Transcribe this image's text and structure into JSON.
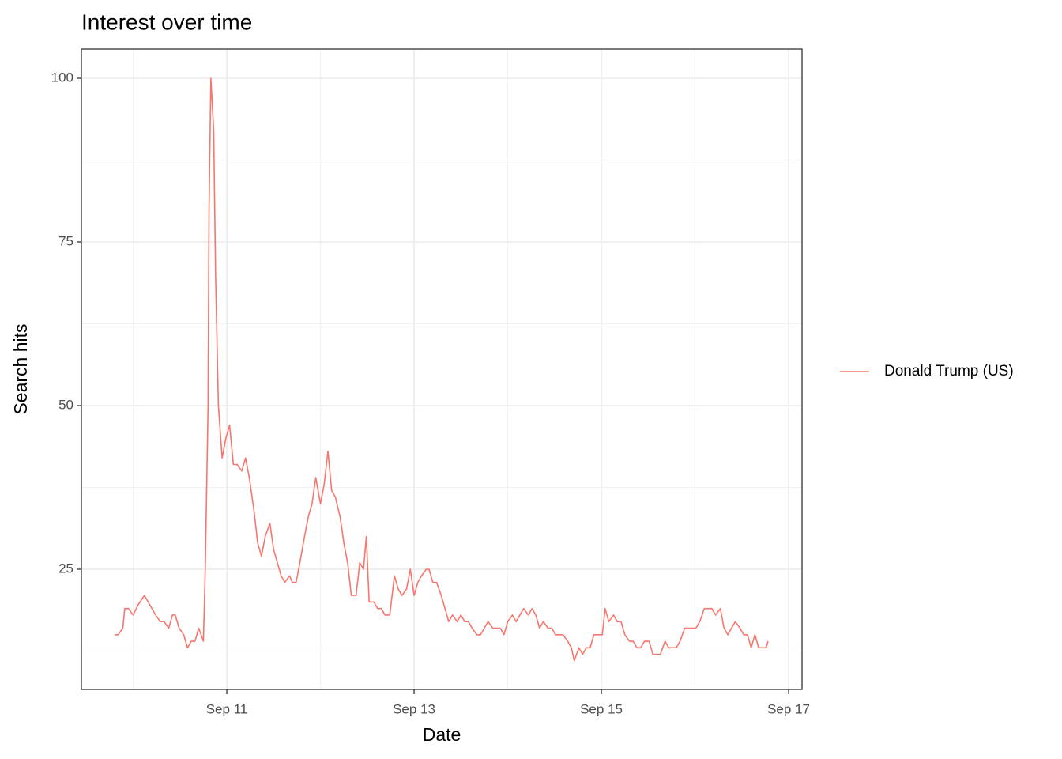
{
  "chart_data": {
    "type": "line",
    "title": "Interest over time",
    "x_label": "Date",
    "y_label": "Search hits",
    "x": [
      9.8,
      9.84,
      9.89,
      9.91,
      9.95,
      10.0,
      10.05,
      10.12,
      10.18,
      10.24,
      10.29,
      10.33,
      10.38,
      10.42,
      10.45,
      10.49,
      10.54,
      10.58,
      10.62,
      10.66,
      10.7,
      10.75,
      10.77,
      10.8,
      10.81,
      10.83,
      10.86,
      10.88,
      10.91,
      10.95,
      10.99,
      11.03,
      11.07,
      11.11,
      11.16,
      11.2,
      11.24,
      11.29,
      11.33,
      11.37,
      11.41,
      11.46,
      11.5,
      11.54,
      11.58,
      11.62,
      11.67,
      11.7,
      11.74,
      11.78,
      11.83,
      11.87,
      11.91,
      11.95,
      12.0,
      12.04,
      12.08,
      12.12,
      12.16,
      12.21,
      12.25,
      12.29,
      12.33,
      12.38,
      12.42,
      12.46,
      12.49,
      12.52,
      12.57,
      12.61,
      12.65,
      12.69,
      12.74,
      12.79,
      12.83,
      12.87,
      12.92,
      12.96,
      13.0,
      13.04,
      13.08,
      13.13,
      13.16,
      13.2,
      13.24,
      13.29,
      13.33,
      13.37,
      13.41,
      13.46,
      13.5,
      13.54,
      13.58,
      13.62,
      13.67,
      13.71,
      13.75,
      13.79,
      13.84,
      13.88,
      13.92,
      13.96,
      14.0,
      14.05,
      14.09,
      14.13,
      14.17,
      14.22,
      14.26,
      14.3,
      14.34,
      14.38,
      14.43,
      14.47,
      14.51,
      14.55,
      14.59,
      14.64,
      14.68,
      14.71,
      14.76,
      14.8,
      14.84,
      14.88,
      14.92,
      14.97,
      15.01,
      15.04,
      15.08,
      15.13,
      15.17,
      15.21,
      15.25,
      15.3,
      15.34,
      15.38,
      15.42,
      15.46,
      15.51,
      15.55,
      15.59,
      15.63,
      15.68,
      15.72,
      15.76,
      15.8,
      15.84,
      15.89,
      15.93,
      15.97,
      16.01,
      16.05,
      16.1,
      16.14,
      16.18,
      16.22,
      16.27,
      16.31,
      16.35,
      16.39,
      16.43,
      16.48,
      16.52,
      16.56,
      16.6,
      16.64,
      16.68,
      16.72,
      16.76,
      16.78
    ],
    "series": [
      {
        "name": "Donald Trump (US)",
        "color": "#F8766D",
        "values": [
          15,
          15,
          16,
          19,
          19,
          18,
          19.5,
          21,
          19.5,
          18,
          17,
          17,
          16,
          18,
          18,
          16,
          15,
          13,
          14,
          14,
          16,
          14,
          25,
          50,
          80,
          100,
          92,
          70,
          50,
          42,
          45,
          47,
          41,
          41,
          40,
          42,
          39,
          34,
          29,
          27,
          30,
          32,
          28,
          26,
          24,
          23,
          24,
          23,
          23,
          26,
          30,
          33,
          35,
          39,
          35,
          38,
          43,
          37,
          36,
          33,
          29,
          26,
          21,
          21,
          26,
          25,
          30,
          20,
          20,
          19,
          19,
          18,
          18,
          24,
          22,
          21,
          22,
          25,
          21,
          23,
          24,
          25,
          25,
          23,
          23,
          21,
          19,
          17,
          18,
          17,
          18,
          17,
          17,
          16,
          15,
          15,
          16,
          17,
          16,
          16,
          16,
          15,
          17,
          18,
          17,
          18,
          19,
          18,
          19,
          18,
          16,
          17,
          16,
          16,
          15,
          15,
          15,
          14,
          13,
          11,
          13,
          12,
          13,
          13,
          15,
          15,
          15,
          19,
          17,
          18,
          17,
          17,
          15,
          14,
          14,
          13,
          13,
          14,
          14,
          12,
          12,
          12,
          14,
          13,
          13,
          13,
          14,
          16,
          16,
          16,
          16,
          17,
          19,
          19,
          19,
          18,
          19,
          16,
          15,
          16,
          17,
          16,
          15,
          15,
          13,
          15,
          13,
          13,
          13,
          14
        ]
      }
    ],
    "xlim": [
      9.447,
      17.143
    ],
    "xticks": [
      {
        "value": 11,
        "label": "Sep 11"
      },
      {
        "value": 13,
        "label": "Sep 13"
      },
      {
        "value": 15,
        "label": "Sep 15"
      },
      {
        "value": 17,
        "label": "Sep 17"
      }
    ],
    "ylim": [
      6.64,
      104.47
    ],
    "yticks": [
      25,
      50,
      75,
      100
    ],
    "grid": true,
    "legend": "right"
  }
}
